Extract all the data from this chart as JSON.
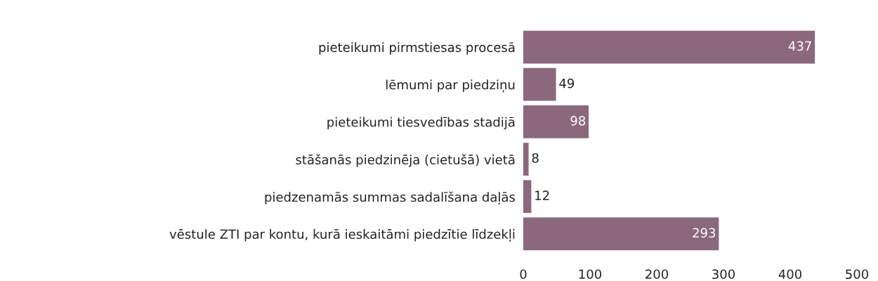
{
  "chart_data": {
    "type": "bar",
    "orientation": "horizontal",
    "categories": [
      "pieteikumi pirmstiesas procesā",
      "lēmumi par piedziņu",
      "pieteikumi tiesvedības stadijā",
      "stāšanās piedzinēja (cietušā) vietā",
      "piedzenamās summas sadalīšana daļās",
      "vēstule ZTI par kontu, kurā ieskaitāmi piedzītie līdzekļi"
    ],
    "values": [
      437,
      49,
      98,
      8,
      12,
      293
    ],
    "color": "#8b687c",
    "xlim": [
      0,
      500
    ],
    "xticks": [
      0,
      100,
      200,
      300,
      400,
      500
    ],
    "data_labels": true,
    "grid": false,
    "legend": false
  }
}
